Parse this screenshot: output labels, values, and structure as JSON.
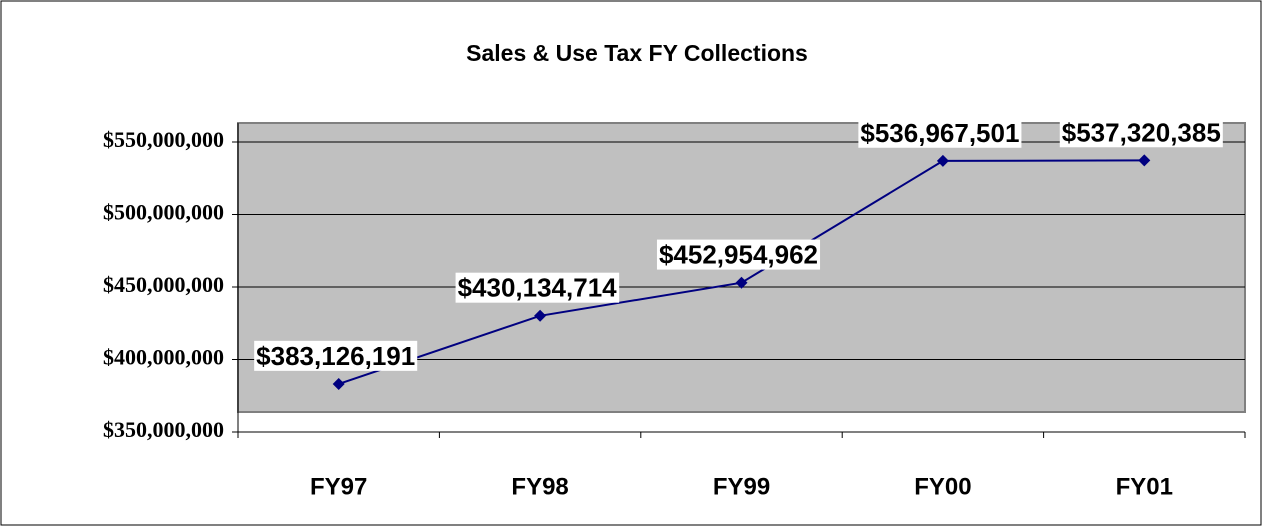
{
  "chart_data": {
    "type": "line",
    "title": "Sales & Use Tax FY Collections",
    "categories": [
      "FY97",
      "FY98",
      "FY99",
      "FY00",
      "FY01"
    ],
    "series": [
      {
        "name": "Sales & Use Tax",
        "color": "#000080",
        "values": [
          383126191,
          430134714,
          452954962,
          536967501,
          537320385
        ],
        "value_labels": [
          "$383,126,191",
          "$430,134,714",
          "$452,954,962",
          "$536,967,501",
          "$537,320,385"
        ]
      }
    ],
    "ylim": [
      350000000,
      550000000
    ],
    "yticks": [
      {
        "value": 350000000,
        "label": "$350,000,000"
      },
      {
        "value": 400000000,
        "label": "$400,000,000"
      },
      {
        "value": 450000000,
        "label": "$450,000,000"
      },
      {
        "value": 500000000,
        "label": "$500,000,000"
      },
      {
        "value": 550000000,
        "label": "$550,000,000"
      }
    ],
    "grid": true
  }
}
